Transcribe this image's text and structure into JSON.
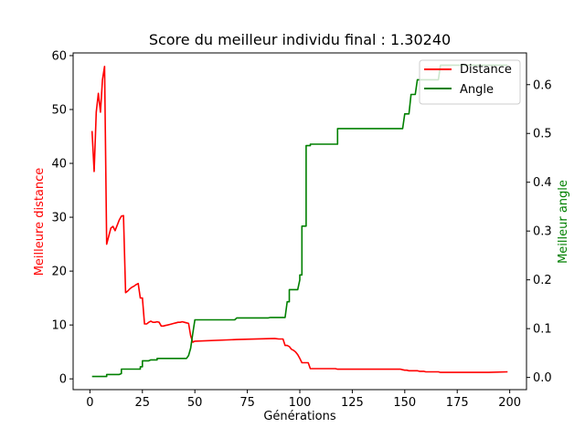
{
  "chart_data": {
    "type": "line",
    "title": "Score du meilleur individu final : 1.30240",
    "xlabel": "Générations",
    "ylabel_left": "Meilleure distance",
    "ylabel_right": "Meilleur angle",
    "xlim": [
      -8,
      208
    ],
    "ylim_left": [
      -2,
      60.5
    ],
    "ylim_right": [
      -0.025,
      0.665
    ],
    "xticks": [
      0,
      25,
      50,
      75,
      100,
      125,
      150,
      175,
      200
    ],
    "yticks_left": [
      0,
      10,
      20,
      30,
      40,
      50,
      60
    ],
    "yticks_right": [
      0.0,
      0.1,
      0.2,
      0.3,
      0.4,
      0.5,
      0.6
    ],
    "grid": false,
    "legend_position": "top-right",
    "colors": {
      "distance": "#ff0000",
      "angle": "#008000"
    },
    "series": [
      {
        "name": "Distance",
        "axis": "left",
        "x": [
          1,
          2,
          3,
          4,
          5,
          6,
          7,
          8,
          9,
          10,
          11,
          12,
          13,
          14,
          15,
          16,
          17,
          18,
          19,
          20,
          21,
          22,
          23,
          24,
          25,
          26,
          27,
          28,
          29,
          30,
          31,
          32,
          33,
          34,
          35,
          36,
          37,
          38,
          39,
          40,
          41,
          42,
          43,
          44,
          45,
          46,
          47,
          48,
          49,
          50,
          70,
          88,
          90,
          92,
          93,
          94,
          95,
          96,
          97,
          98,
          99,
          100,
          101,
          102,
          103,
          104,
          105,
          106,
          107,
          117,
          118,
          119,
          148,
          149,
          150,
          151,
          152,
          153,
          154,
          155,
          156,
          157,
          158,
          159,
          160,
          165,
          166,
          167,
          168,
          175,
          185,
          190,
          199
        ],
        "y": [
          46,
          38.5,
          49.5,
          53,
          49.5,
          55.5,
          58,
          25,
          26.5,
          28,
          28.3,
          27.5,
          28.5,
          29.5,
          30.2,
          30.3,
          16,
          16.3,
          16.7,
          17,
          17.2,
          17.5,
          17.7,
          15,
          15,
          10.2,
          10.2,
          10.5,
          10.7,
          10.5,
          10.5,
          10.6,
          10.5,
          9.8,
          9.8,
          9.9,
          10,
          10.1,
          10.2,
          10.3,
          10.4,
          10.5,
          10.5,
          10.6,
          10.5,
          10.4,
          10.3,
          8,
          6.8,
          7,
          7.3,
          7.5,
          7.4,
          7.4,
          6.2,
          6.2,
          6,
          5.5,
          5.3,
          5.0,
          4.5,
          3.8,
          3.0,
          3.0,
          3.0,
          3.0,
          1.9,
          1.9,
          1.9,
          1.9,
          1.8,
          1.8,
          1.8,
          1.7,
          1.6,
          1.6,
          1.5,
          1.5,
          1.5,
          1.5,
          1.5,
          1.4,
          1.4,
          1.4,
          1.3,
          1.3,
          1.3,
          1.2,
          1.2,
          1.2,
          1.2,
          1.2,
          1.3
        ]
      },
      {
        "name": "Angle",
        "axis": "right",
        "x": [
          1,
          8,
          8,
          14,
          15,
          15,
          24,
          24,
          25,
          25,
          26,
          28,
          29,
          32,
          32,
          35,
          46,
          47,
          48,
          49,
          50,
          69,
          70,
          85,
          86,
          93,
          94,
          95,
          95,
          96,
          98,
          99,
          100,
          100,
          101,
          101,
          102,
          103,
          103,
          104,
          105,
          105,
          106,
          108,
          109,
          112,
          113,
          116,
          118,
          118,
          119,
          149,
          150,
          151,
          152,
          153,
          154,
          155,
          156,
          157,
          158,
          159,
          160,
          161,
          162,
          163,
          164,
          165,
          166,
          167,
          170,
          199
        ],
        "y": [
          0.002,
          0.002,
          0.006,
          0.006,
          0.008,
          0.017,
          0.017,
          0.022,
          0.022,
          0.034,
          0.034,
          0.034,
          0.036,
          0.036,
          0.039,
          0.039,
          0.039,
          0.045,
          0.06,
          0.09,
          0.118,
          0.118,
          0.122,
          0.122,
          0.123,
          0.123,
          0.155,
          0.155,
          0.18,
          0.18,
          0.18,
          0.18,
          0.2,
          0.21,
          0.21,
          0.31,
          0.31,
          0.31,
          0.475,
          0.475,
          0.475,
          0.478,
          0.478,
          0.478,
          0.478,
          0.478,
          0.478,
          0.478,
          0.478,
          0.51,
          0.51,
          0.51,
          0.54,
          0.54,
          0.54,
          0.58,
          0.58,
          0.58,
          0.61,
          0.61,
          0.61,
          0.61,
          0.61,
          0.61,
          0.61,
          0.61,
          0.61,
          0.61,
          0.61,
          0.64,
          0.64,
          0.64
        ]
      }
    ]
  }
}
